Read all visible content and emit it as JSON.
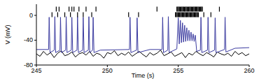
{
  "chart_data": {
    "type": "line",
    "x_label": "Time (s)",
    "y_label": "V (mV)",
    "xlim": [
      245,
      260
    ],
    "xticks": [
      245,
      250,
      255,
      260
    ],
    "ylim": [
      -80,
      18
    ],
    "yticks": [
      0,
      -40,
      -80
    ],
    "series": [
      {
        "color": "#000000",
        "type": "line",
        "x": [
          245,
          245.25,
          245.5,
          245.75,
          246,
          246.25,
          246.5,
          246.75,
          247,
          247.25,
          247.5,
          247.75,
          248,
          248.25,
          248.5,
          248.75,
          249,
          249.25,
          249.5,
          249.75,
          250,
          250.25,
          250.5,
          250.75,
          251,
          251.25,
          251.5,
          251.75,
          252,
          252.25,
          252.5,
          252.75,
          253,
          253.25,
          253.5,
          253.75,
          254,
          254.25,
          254.5,
          254.75,
          255,
          255.25,
          255.5,
          255.75,
          256,
          256.25,
          256.5,
          256.75,
          257,
          257.25,
          257.5,
          257.75,
          258,
          258.25,
          258.5,
          258.75,
          259,
          259.25,
          259.5,
          259.75,
          260
        ],
        "values": [
          -62,
          -66,
          -58,
          -64,
          -60,
          -68,
          -61,
          -57,
          -65,
          -63,
          -59,
          -67,
          -62,
          -60,
          -64,
          -58,
          -66,
          -61,
          -63,
          -69,
          -60,
          -62,
          -57,
          -65,
          -61,
          -64,
          -59,
          -66,
          -62,
          -58,
          -63,
          -67,
          -60,
          -64,
          -61,
          -56,
          -65,
          -62,
          -59,
          -66,
          -63,
          -60,
          -68,
          -61,
          -64,
          -58,
          -62,
          -65,
          -60,
          -63,
          -67,
          -59,
          -62,
          -64,
          -61,
          -66,
          -58,
          -63,
          -60,
          -65,
          -62
        ]
      },
      {
        "color": "#3b3ba0",
        "type": "line",
        "x": [
          245.0,
          245.86,
          245.9,
          245.96,
          246.26,
          246.3,
          246.36,
          246.66,
          246.7,
          246.76,
          247.06,
          247.1,
          247.16,
          247.46,
          247.5,
          247.56,
          247.86,
          247.9,
          247.96,
          248.26,
          248.3,
          248.36,
          248.66,
          248.7,
          248.76,
          248.96,
          249.0,
          249.06,
          249.5,
          251.56,
          251.6,
          251.66,
          252.06,
          252.1,
          252.16,
          253.0,
          253.86,
          253.9,
          253.96,
          254.26,
          254.3,
          254.36,
          254.9,
          255.0,
          255.07,
          255.15,
          255.22,
          255.3,
          255.37,
          255.45,
          255.52,
          255.6,
          255.67,
          255.75,
          255.82,
          255.9,
          255.97,
          256.05,
          256.12,
          256.2,
          256.3,
          256.56,
          256.6,
          256.66,
          257.06,
          257.1,
          257.16,
          257.56,
          257.6,
          257.66,
          258.26,
          258.3,
          258.36,
          259.0,
          260.0
        ],
        "values": [
          -55,
          -55,
          -3,
          -60,
          -56,
          -2,
          -60,
          -56,
          -3,
          -60,
          -56,
          -2,
          -60,
          -56,
          -3,
          -60,
          -56,
          -2,
          -60,
          -56,
          -3,
          -60,
          -56,
          -2,
          -60,
          -56,
          -3,
          -60,
          -56,
          -55,
          -3,
          -60,
          -56,
          -4,
          -60,
          -55,
          -55,
          -3,
          -60,
          -56,
          -2,
          -60,
          -54,
          -4,
          -46,
          -8,
          -44,
          -12,
          -43,
          -16,
          -42,
          -20,
          -41,
          -24,
          -41,
          -27,
          -41,
          -30,
          -42,
          -32,
          -58,
          -56,
          -3,
          -60,
          -56,
          -3,
          -60,
          -56,
          -4,
          -60,
          -55,
          -3,
          -59,
          -53,
          -52
        ]
      },
      {
        "color": "#000000",
        "type": "scatter",
        "marker": "vline",
        "x": [
          246.4,
          246.6,
          247.3,
          247.5,
          247.65,
          248.0,
          248.5,
          249.2,
          253.5,
          254.9,
          254.96,
          255.02,
          255.08,
          255.14,
          255.2,
          255.26,
          255.32,
          255.38,
          255.44,
          255.5,
          255.56,
          255.62,
          255.68,
          255.74,
          255.8,
          255.86,
          255.92,
          255.98,
          256.04,
          256.1,
          256.16,
          256.22,
          256.28,
          256.34,
          256.4,
          256.46,
          256.52,
          256.58,
          256.64,
          256.7,
          257.9
        ],
        "values": [
          10,
          10,
          10,
          10,
          10,
          10,
          10,
          10,
          10,
          10,
          10,
          10,
          10,
          10,
          10,
          10,
          10,
          10,
          10,
          10,
          10,
          10,
          10,
          10,
          10,
          10,
          10,
          10,
          10,
          10,
          10,
          10,
          10,
          10,
          10,
          10,
          10,
          10,
          10,
          10,
          10
        ]
      },
      {
        "color": "#000000",
        "type": "scatter",
        "marker": "vline",
        "x": [
          246.1,
          246.5,
          247.0,
          247.4,
          247.9,
          248.3,
          248.9,
          251.5,
          252.2,
          254.8,
          254.86,
          254.92,
          254.98,
          255.04,
          255.1,
          255.16,
          255.22,
          255.28,
          255.34,
          255.4,
          255.46,
          255.52,
          255.58,
          255.64,
          255.7,
          255.76,
          255.82,
          255.88,
          255.94,
          256.0,
          256.06,
          256.12,
          256.18,
          256.24,
          256.3,
          256.36,
          256.42,
          256.8,
          257.3
        ],
        "values": [
          1,
          1,
          1,
          1,
          1,
          1,
          1,
          1,
          1,
          1,
          1,
          1,
          1,
          1,
          1,
          1,
          1,
          1,
          1,
          1,
          1,
          1,
          1,
          1,
          1,
          1,
          1,
          1,
          1,
          1,
          1,
          1,
          1,
          1,
          1,
          1,
          1,
          1,
          1
        ]
      }
    ]
  }
}
